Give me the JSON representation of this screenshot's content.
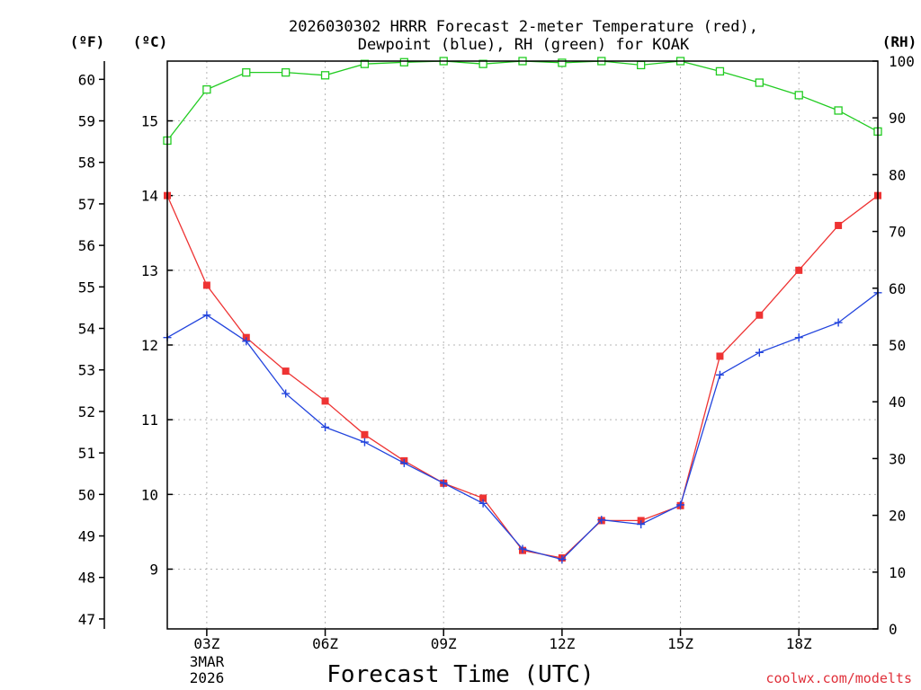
{
  "chart_data": {
    "type": "line",
    "title_line1": "2026030302 HRRR Forecast 2-meter Temperature (red),",
    "title_line2": "Dewpoint (blue), RH (green) for KOAK",
    "xlabel": "Forecast Time (UTC)",
    "credit": "coolwx.com/modelts",
    "date_line1": "3MAR",
    "date_line2": "2026",
    "unit_f": "(ºF)",
    "unit_c": "(ºC)",
    "unit_rh": "(RH)",
    "x_hours": [
      2,
      3,
      4,
      5,
      6,
      7,
      8,
      9,
      10,
      11,
      12,
      13,
      14,
      15,
      16,
      17,
      18,
      19,
      20
    ],
    "x_range": [
      2,
      20
    ],
    "x_ticks": [
      {
        "hour": 3,
        "label": "03Z"
      },
      {
        "hour": 6,
        "label": "06Z"
      },
      {
        "hour": 9,
        "label": "09Z"
      },
      {
        "hour": 12,
        "label": "12Z"
      },
      {
        "hour": 15,
        "label": "15Z"
      },
      {
        "hour": 18,
        "label": "18Z"
      }
    ],
    "y_range_c": [
      8.2,
      15.8
    ],
    "y_ticks_c": [
      "9",
      "10",
      "11",
      "12",
      "13",
      "14",
      "15"
    ],
    "y_ticks_f": [
      "47",
      "48",
      "49",
      "50",
      "51",
      "52",
      "53",
      "54",
      "55",
      "56",
      "57",
      "58",
      "59",
      "60"
    ],
    "y_range_rh": [
      0,
      100
    ],
    "y_ticks_rh": [
      "0",
      "10",
      "20",
      "30",
      "40",
      "50",
      "60",
      "70",
      "80",
      "90",
      "100"
    ],
    "series": [
      {
        "name": "Temperature",
        "units": "°C",
        "color": "#ee3333",
        "marker": "square-filled",
        "values": [
          14.0,
          12.8,
          12.1,
          11.65,
          11.25,
          10.8,
          10.45,
          10.15,
          9.95,
          9.25,
          9.15,
          9.65,
          9.65,
          9.85,
          11.85,
          12.4,
          13.0,
          13.6,
          14.0
        ]
      },
      {
        "name": "Dewpoint",
        "units": "°C",
        "color": "#2244dd",
        "marker": "plus",
        "values": [
          12.1,
          12.4,
          12.05,
          11.35,
          10.9,
          10.7,
          10.42,
          10.15,
          9.88,
          9.27,
          9.13,
          9.66,
          9.6,
          9.86,
          11.6,
          11.9,
          12.1,
          12.3,
          12.7
        ]
      },
      {
        "name": "RH",
        "units": "%",
        "color": "#22cc22",
        "marker": "square-open",
        "values": [
          86,
          95,
          98,
          98,
          97.5,
          99.5,
          99.8,
          100,
          99.5,
          100,
          99.7,
          100,
          99.3,
          100,
          98.2,
          96.2,
          94,
          91.3,
          87.6
        ]
      }
    ]
  }
}
